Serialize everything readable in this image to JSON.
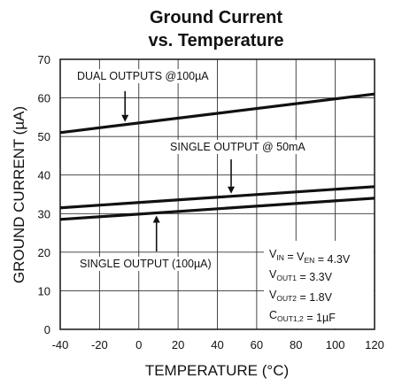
{
  "chart_data": {
    "type": "line",
    "title_lines": [
      "Ground Current",
      "vs. Temperature"
    ],
    "xlabel": "TEMPERATURE (°C)",
    "ylabel": "GROUND CURRENT (µA)",
    "xlim": [
      -40,
      120
    ],
    "ylim": [
      0,
      70
    ],
    "xticks": [
      -40,
      -20,
      0,
      20,
      40,
      60,
      80,
      100,
      120
    ],
    "yticks": [
      0,
      10,
      20,
      30,
      40,
      50,
      60,
      70
    ],
    "grid": true,
    "series": [
      {
        "name": "DUAL OUTPUTS @100µA",
        "x": [
          -40,
          120
        ],
        "y": [
          51.0,
          61.0
        ]
      },
      {
        "name": "SINGLE OUTPUT @ 50mA",
        "x": [
          -40,
          120
        ],
        "y": [
          31.5,
          37.0
        ]
      },
      {
        "name": "SINGLE OUTPUT (100µA)",
        "x": [
          -40,
          120
        ],
        "y": [
          28.5,
          34.0
        ]
      }
    ],
    "annotations": [
      {
        "text": "DUAL OUTPUTS @100µA",
        "series_index": 0,
        "arrow_x": -7,
        "arrow_dir": "down"
      },
      {
        "text": "SINGLE OUTPUT @ 50mA",
        "series_index": 1,
        "arrow_x": 47,
        "arrow_dir": "down"
      },
      {
        "text": "SINGLE OUTPUT (100µA)",
        "series_index": 2,
        "arrow_x": 9,
        "arrow_dir": "up"
      }
    ],
    "conditions": [
      {
        "main": "V",
        "sub": "IN",
        "rest": " = V",
        "sub2": "EN",
        "rest2": " = 4.3V"
      },
      {
        "main": "V",
        "sub": "OUT1",
        "rest": " = 3.3V",
        "sub2": "",
        "rest2": ""
      },
      {
        "main": "V",
        "sub": "OUT2",
        "rest": " = 1.8V",
        "sub2": "",
        "rest2": ""
      },
      {
        "main": "C",
        "sub": "OUT1,2",
        "rest": " = 1µF",
        "sub2": "",
        "rest2": ""
      }
    ]
  }
}
